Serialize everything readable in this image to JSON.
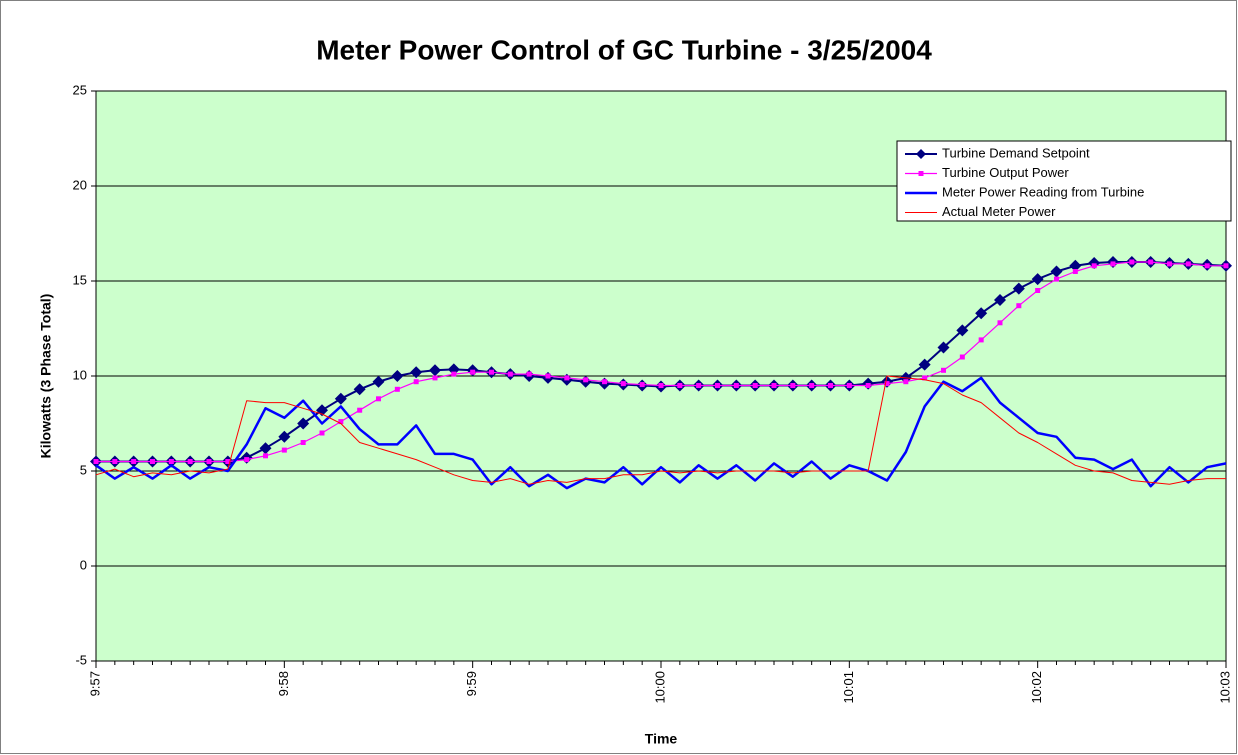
{
  "chart_data": {
    "type": "line",
    "title": "Meter Power Control of GC Turbine - 3/25/2004",
    "x_label": "Time",
    "y_label": "Kilowatts (3 Phase Total)",
    "categories": [
      "9:57",
      null,
      null,
      null,
      null,
      null,
      null,
      null,
      null,
      null,
      "9:58",
      null,
      null,
      null,
      null,
      null,
      null,
      null,
      null,
      null,
      "9:59",
      null,
      null,
      null,
      null,
      null,
      null,
      null,
      null,
      null,
      "10:00",
      null,
      null,
      null,
      null,
      null,
      null,
      null,
      null,
      null,
      "10:01",
      null,
      null,
      null,
      null,
      null,
      null,
      null,
      null,
      null,
      "10:02",
      null,
      null,
      null,
      null,
      null,
      null,
      null,
      null,
      null,
      "10:03"
    ],
    "ylim": [
      -5,
      25
    ],
    "yticks": [
      -5,
      0,
      5,
      10,
      15,
      20,
      25
    ],
    "grid": true,
    "background": "#ccffcc",
    "legend": "upper right",
    "series": [
      {
        "name": "Turbine Demand Setpoint",
        "color": "#000080",
        "marker": "diamond",
        "values": [
          5.5,
          5.5,
          5.5,
          5.5,
          5.5,
          5.5,
          5.5,
          5.5,
          5.7,
          6.2,
          6.8,
          7.5,
          8.2,
          8.8,
          9.3,
          9.7,
          10.0,
          10.2,
          10.3,
          10.35,
          10.3,
          10.2,
          10.1,
          10.0,
          9.9,
          9.8,
          9.7,
          9.6,
          9.55,
          9.5,
          9.45,
          9.5,
          9.5,
          9.5,
          9.5,
          9.5,
          9.5,
          9.5,
          9.5,
          9.5,
          9.5,
          9.6,
          9.7,
          9.9,
          10.6,
          11.5,
          12.4,
          13.3,
          14.0,
          14.6,
          15.1,
          15.5,
          15.8,
          15.95,
          16.0,
          16.0,
          16.0,
          15.95,
          15.9,
          15.85,
          15.8
        ]
      },
      {
        "name": "Turbine Output Power",
        "color": "#ff00ff",
        "marker": "square",
        "values": [
          5.5,
          5.5,
          5.5,
          5.5,
          5.5,
          5.5,
          5.5,
          5.5,
          5.6,
          5.8,
          6.1,
          6.5,
          7.0,
          7.6,
          8.2,
          8.8,
          9.3,
          9.7,
          9.9,
          10.1,
          10.2,
          10.2,
          10.1,
          10.1,
          10.0,
          9.9,
          9.8,
          9.7,
          9.6,
          9.55,
          9.5,
          9.5,
          9.5,
          9.5,
          9.5,
          9.5,
          9.5,
          9.5,
          9.5,
          9.5,
          9.5,
          9.5,
          9.6,
          9.7,
          9.9,
          10.3,
          11.0,
          11.9,
          12.8,
          13.7,
          14.5,
          15.1,
          15.5,
          15.8,
          15.9,
          16.0,
          16.0,
          15.9,
          15.9,
          15.8,
          15.8
        ]
      },
      {
        "name": "Meter Power Reading from Turbine",
        "color": "#0000ff",
        "marker": "none",
        "values": [
          5.3,
          4.6,
          5.2,
          4.6,
          5.3,
          4.6,
          5.2,
          5.0,
          6.4,
          8.3,
          7.8,
          8.7,
          7.5,
          8.4,
          7.2,
          6.4,
          6.4,
          7.4,
          5.9,
          5.9,
          5.6,
          4.3,
          5.2,
          4.2,
          4.8,
          4.1,
          4.6,
          4.4,
          5.2,
          4.3,
          5.2,
          4.4,
          5.3,
          4.6,
          5.3,
          4.5,
          5.4,
          4.7,
          5.5,
          4.6,
          5.3,
          5.0,
          4.5,
          6.0,
          8.4,
          9.7,
          9.2,
          9.9,
          8.6,
          7.8,
          7.0,
          6.8,
          5.7,
          5.6,
          5.1,
          5.6,
          4.2,
          5.2,
          4.4,
          5.2,
          5.4
        ]
      },
      {
        "name": "Actual Meter Power",
        "color": "#ff0000",
        "marker": "none",
        "values": [
          4.8,
          5.1,
          4.7,
          4.9,
          4.8,
          5.0,
          4.9,
          5.1,
          8.7,
          8.6,
          8.6,
          8.3,
          8.0,
          7.5,
          6.5,
          6.2,
          5.9,
          5.6,
          5.2,
          4.8,
          4.5,
          4.4,
          4.6,
          4.3,
          4.5,
          4.4,
          4.6,
          4.6,
          4.8,
          4.8,
          5.0,
          4.9,
          5.0,
          4.9,
          5.0,
          5.0,
          5.0,
          4.9,
          5.0,
          5.0,
          5.0,
          5.0,
          10.0,
          9.9,
          9.8,
          9.6,
          9.0,
          8.6,
          7.8,
          7.0,
          6.5,
          5.9,
          5.3,
          5.0,
          4.9,
          4.5,
          4.4,
          4.3,
          4.5,
          4.6,
          4.6
        ]
      }
    ]
  }
}
